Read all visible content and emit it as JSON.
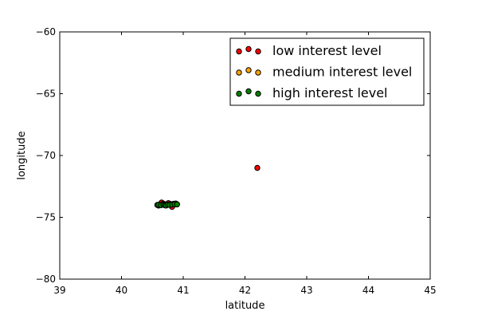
{
  "chart_data": {
    "type": "scatter",
    "title": "",
    "xlabel": "latitude",
    "ylabel": "longitude",
    "xlim": [
      39,
      45
    ],
    "ylim": [
      -80,
      -60
    ],
    "x_ticks": [
      39,
      40,
      41,
      42,
      43,
      44,
      45
    ],
    "y_ticks": [
      -80,
      -75,
      -70,
      -65,
      -60
    ],
    "x_tick_labels": [
      "39",
      "40",
      "41",
      "42",
      "43",
      "44",
      "45"
    ],
    "y_tick_labels": [
      "−80",
      "−75",
      "−70",
      "−65",
      "−60"
    ],
    "grid": false,
    "legend_position": "top-right",
    "series": [
      {
        "name": "low interest level",
        "color": "#ff0000",
        "points": [
          [
            42.2,
            -71.0
          ],
          [
            40.62,
            -73.95
          ],
          [
            40.65,
            -73.8
          ],
          [
            40.68,
            -73.9
          ],
          [
            40.7,
            -73.95
          ],
          [
            40.72,
            -74.0
          ],
          [
            40.74,
            -73.97
          ],
          [
            40.76,
            -73.85
          ],
          [
            40.78,
            -73.95
          ],
          [
            40.8,
            -73.93
          ],
          [
            40.82,
            -74.15
          ],
          [
            40.85,
            -73.9
          ],
          [
            40.88,
            -73.88
          ],
          [
            40.6,
            -74.05
          ],
          [
            40.9,
            -73.95
          ]
        ]
      },
      {
        "name": "medium interest level",
        "color": "#ffa500",
        "points": [
          [
            40.66,
            -73.95
          ],
          [
            40.7,
            -74.0
          ],
          [
            40.73,
            -73.98
          ],
          [
            40.75,
            -73.97
          ],
          [
            40.78,
            -73.95
          ],
          [
            40.8,
            -73.94
          ],
          [
            40.84,
            -73.92
          ]
        ]
      },
      {
        "name": "high interest level",
        "color": "#008000",
        "points": [
          [
            40.58,
            -74.0
          ],
          [
            40.6,
            -73.98
          ],
          [
            40.64,
            -74.02
          ],
          [
            40.68,
            -73.98
          ],
          [
            40.7,
            -74.02
          ],
          [
            40.72,
            -74.05
          ],
          [
            40.75,
            -73.98
          ],
          [
            40.78,
            -74.0
          ],
          [
            40.82,
            -73.98
          ],
          [
            40.86,
            -73.95
          ],
          [
            40.9,
            -73.95
          ]
        ]
      }
    ]
  }
}
